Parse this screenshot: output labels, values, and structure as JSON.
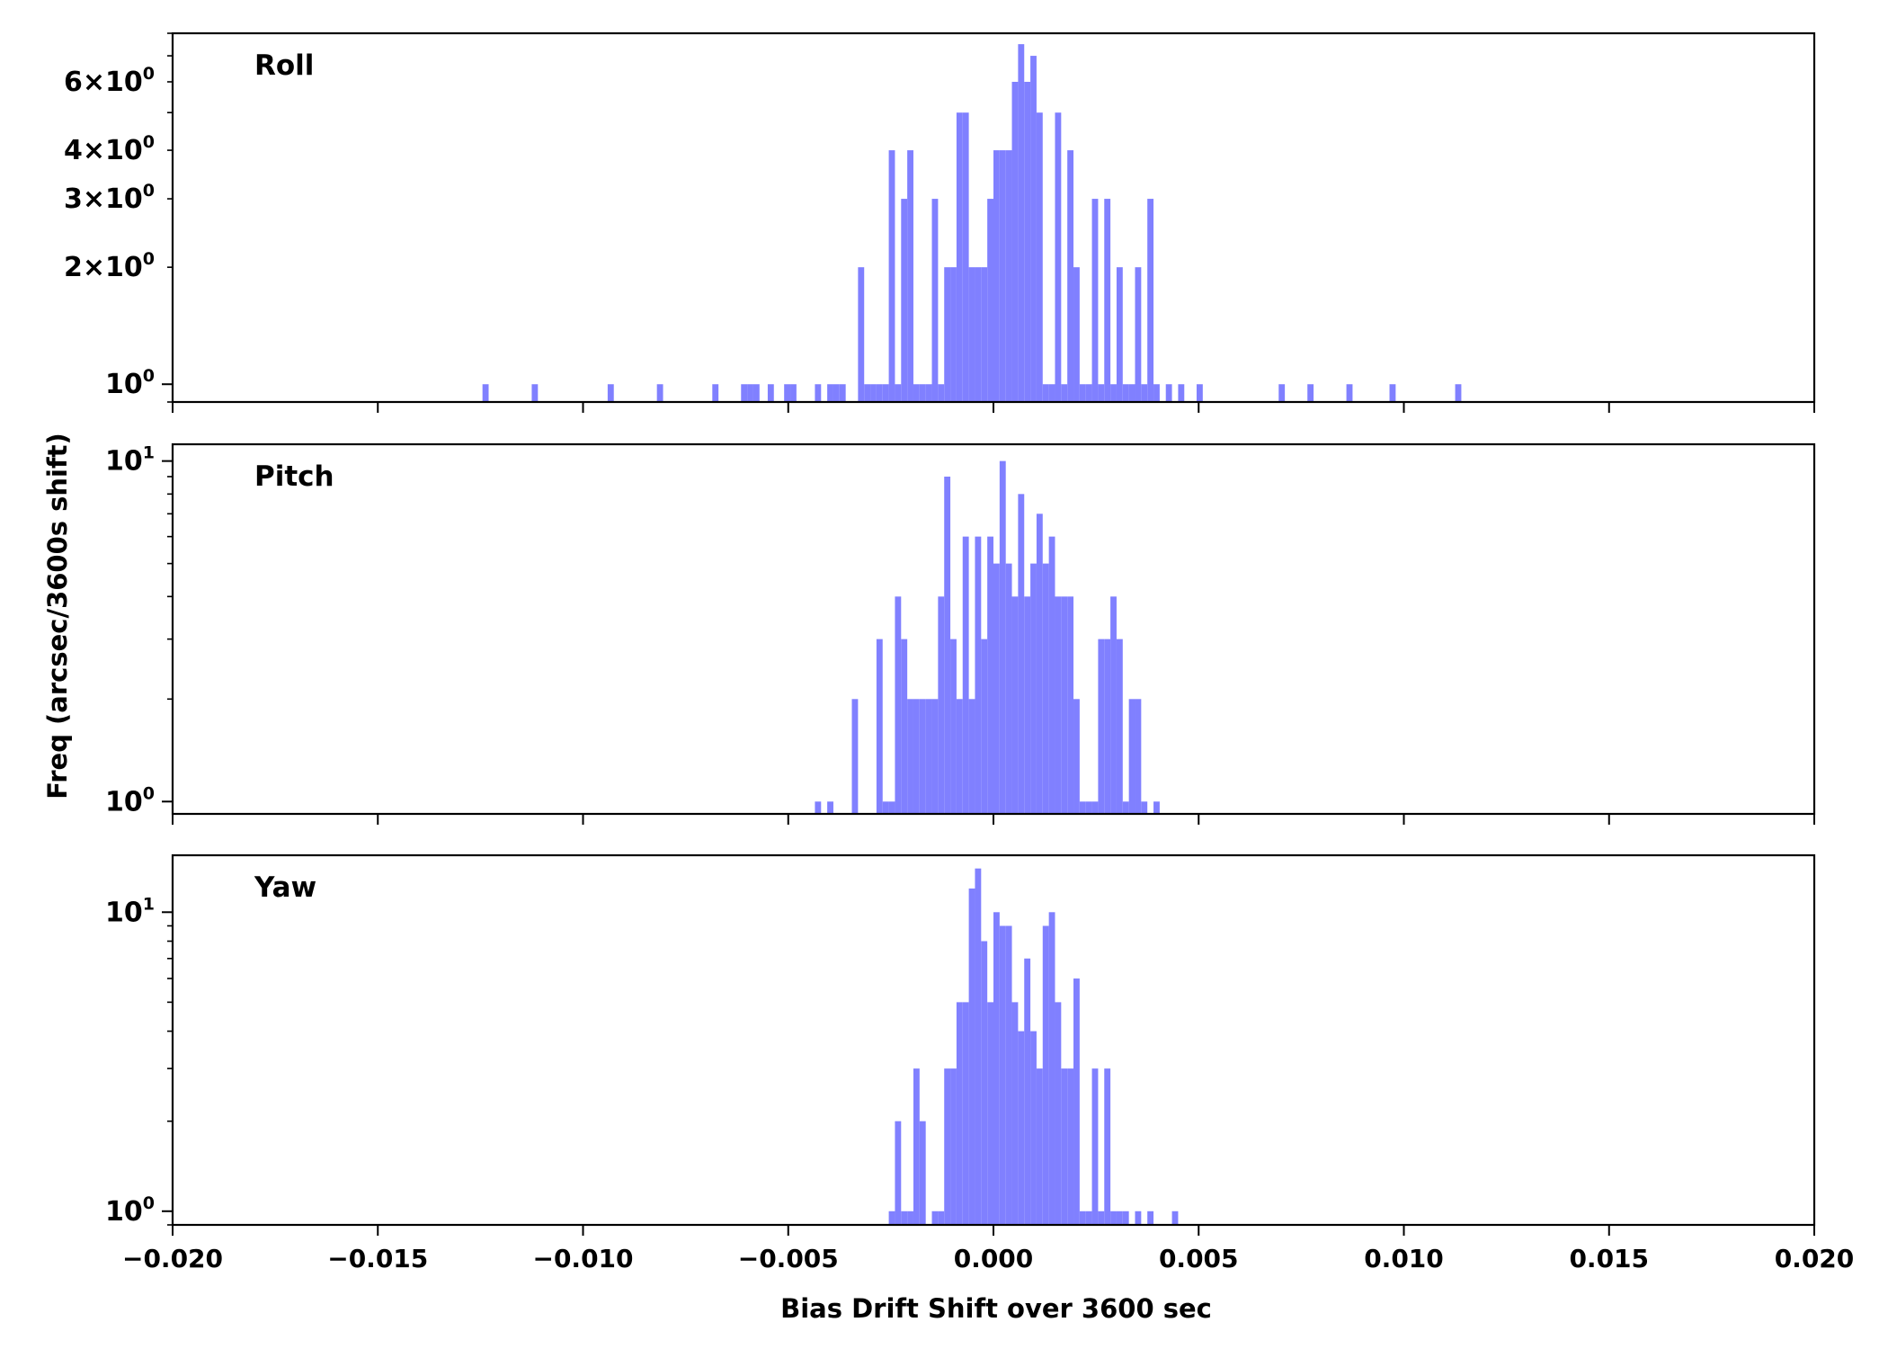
{
  "chart_data": {
    "type": "histogram",
    "xlabel": "Bias Drift Shift over 3600 sec",
    "ylabel": "Freq (arcsec/3600s shift)",
    "xlim": [
      -0.02,
      0.02
    ],
    "bar_color": "#8080ff",
    "x_ticks": [
      "−0.020",
      "−0.015",
      "−0.010",
      "−0.005",
      "0.000",
      "0.005",
      "0.010",
      "0.015",
      "0.020"
    ],
    "x_tick_values": [
      -0.02,
      -0.015,
      -0.01,
      -0.005,
      0.0,
      0.005,
      0.01,
      0.015,
      0.02
    ],
    "panels": [
      {
        "name": "Roll",
        "yscale": "log",
        "ylim": [
          0.9,
          8.0
        ],
        "yticks": [
          {
            "value": 1,
            "mant": "",
            "exp": "0"
          },
          {
            "value": 2,
            "mant": "2",
            "exp": "0"
          },
          {
            "value": 3,
            "mant": "3",
            "exp": "0"
          },
          {
            "value": 4,
            "mant": "4",
            "exp": "0"
          },
          {
            "value": 6,
            "mant": "6",
            "exp": "0"
          }
        ],
        "bins": [
          [
            -0.01245,
            1
          ],
          [
            -0.01125,
            1
          ],
          [
            -0.0094,
            1
          ],
          [
            -0.0082,
            1
          ],
          [
            -0.00685,
            1
          ],
          [
            -0.00615,
            1
          ],
          [
            -0.006,
            1
          ],
          [
            -0.00585,
            1
          ],
          [
            -0.0055,
            1
          ],
          [
            -0.0051,
            1
          ],
          [
            -0.00495,
            1
          ],
          [
            -0.00435,
            1
          ],
          [
            -0.00405,
            1
          ],
          [
            -0.0039,
            1
          ],
          [
            -0.00375,
            1
          ],
          [
            -0.0033,
            2
          ],
          [
            -0.00315,
            1
          ],
          [
            -0.003,
            1
          ],
          [
            -0.00285,
            1
          ],
          [
            -0.0027,
            1
          ],
          [
            -0.00255,
            4
          ],
          [
            -0.0024,
            1
          ],
          [
            -0.00225,
            3
          ],
          [
            -0.0021,
            4
          ],
          [
            -0.00195,
            1
          ],
          [
            -0.0018,
            1
          ],
          [
            -0.00165,
            1
          ],
          [
            -0.0015,
            3
          ],
          [
            -0.00135,
            1
          ],
          [
            -0.0012,
            2
          ],
          [
            -0.00105,
            2
          ],
          [
            -0.0009,
            5
          ],
          [
            -0.00075,
            5
          ],
          [
            -0.0006,
            2
          ],
          [
            -0.00045,
            2
          ],
          [
            -0.0003,
            2
          ],
          [
            -0.00015,
            3
          ],
          [
            0.0,
            4
          ],
          [
            0.00015,
            4
          ],
          [
            0.0003,
            4
          ],
          [
            0.00045,
            6
          ],
          [
            0.0006,
            7.5
          ],
          [
            0.00075,
            6
          ],
          [
            0.0009,
            7
          ],
          [
            0.00105,
            5
          ],
          [
            0.0012,
            1
          ],
          [
            0.00135,
            1
          ],
          [
            0.0015,
            5
          ],
          [
            0.00165,
            1
          ],
          [
            0.0018,
            4
          ],
          [
            0.00195,
            2
          ],
          [
            0.0021,
            1
          ],
          [
            0.00225,
            1
          ],
          [
            0.0024,
            3
          ],
          [
            0.00255,
            1
          ],
          [
            0.0027,
            3
          ],
          [
            0.00285,
            1
          ],
          [
            0.003,
            2
          ],
          [
            0.00315,
            1
          ],
          [
            0.0033,
            1
          ],
          [
            0.00345,
            2
          ],
          [
            0.0036,
            1
          ],
          [
            0.00375,
            3
          ],
          [
            0.0039,
            1
          ],
          [
            0.0042,
            1
          ],
          [
            0.0045,
            1
          ],
          [
            0.00495,
            1
          ],
          [
            0.00695,
            1
          ],
          [
            0.00765,
            1
          ],
          [
            0.0086,
            1
          ],
          [
            0.00965,
            1
          ],
          [
            0.01125,
            1
          ]
        ]
      },
      {
        "name": "Pitch",
        "yscale": "log",
        "ylim": [
          0.92,
          11.2
        ],
        "yticks": [
          {
            "value": 1,
            "mant": "",
            "exp": "0"
          },
          {
            "value": 10,
            "mant": "",
            "exp": "1"
          }
        ],
        "bins": [
          [
            -0.00435,
            1
          ],
          [
            -0.00405,
            1
          ],
          [
            -0.00345,
            2
          ],
          [
            -0.00285,
            3
          ],
          [
            -0.0027,
            1
          ],
          [
            -0.00255,
            1
          ],
          [
            -0.0024,
            4
          ],
          [
            -0.00225,
            3
          ],
          [
            -0.0021,
            2
          ],
          [
            -0.00195,
            2
          ],
          [
            -0.0018,
            2
          ],
          [
            -0.00165,
            2
          ],
          [
            -0.0015,
            2
          ],
          [
            -0.00135,
            4
          ],
          [
            -0.0012,
            9
          ],
          [
            -0.00105,
            3
          ],
          [
            -0.0009,
            2
          ],
          [
            -0.00075,
            6
          ],
          [
            -0.0006,
            2
          ],
          [
            -0.00045,
            6
          ],
          [
            -0.0003,
            3
          ],
          [
            -0.00015,
            6
          ],
          [
            0.0,
            5
          ],
          [
            0.00015,
            10
          ],
          [
            0.0003,
            5
          ],
          [
            0.00045,
            4
          ],
          [
            0.0006,
            8
          ],
          [
            0.00075,
            4
          ],
          [
            0.0009,
            5
          ],
          [
            0.00105,
            7
          ],
          [
            0.0012,
            5
          ],
          [
            0.00135,
            6
          ],
          [
            0.0015,
            4
          ],
          [
            0.00165,
            4
          ],
          [
            0.0018,
            4
          ],
          [
            0.00195,
            2
          ],
          [
            0.0021,
            1
          ],
          [
            0.00225,
            1
          ],
          [
            0.0024,
            1
          ],
          [
            0.00255,
            3
          ],
          [
            0.0027,
            3
          ],
          [
            0.00285,
            4
          ],
          [
            0.003,
            3
          ],
          [
            0.00315,
            1
          ],
          [
            0.0033,
            2
          ],
          [
            0.00345,
            2
          ],
          [
            0.0036,
            1
          ],
          [
            0.0039,
            1
          ]
        ]
      },
      {
        "name": "Yaw",
        "yscale": "log",
        "ylim": [
          0.9,
          15.5
        ],
        "yticks": [
          {
            "value": 1,
            "mant": "",
            "exp": "0"
          },
          {
            "value": 10,
            "mant": "",
            "exp": "1"
          }
        ],
        "bins": [
          [
            -0.00255,
            1
          ],
          [
            -0.0024,
            2
          ],
          [
            -0.00225,
            1
          ],
          [
            -0.0021,
            1
          ],
          [
            -0.00195,
            3
          ],
          [
            -0.0018,
            2
          ],
          [
            -0.0015,
            1
          ],
          [
            -0.00135,
            1
          ],
          [
            -0.0012,
            3
          ],
          [
            -0.00105,
            3
          ],
          [
            -0.0009,
            5
          ],
          [
            -0.00075,
            5
          ],
          [
            -0.0006,
            12
          ],
          [
            -0.00045,
            14
          ],
          [
            -0.0003,
            8
          ],
          [
            -0.00015,
            5
          ],
          [
            0.0,
            10
          ],
          [
            0.00015,
            9
          ],
          [
            0.0003,
            9
          ],
          [
            0.00045,
            5
          ],
          [
            0.0006,
            4
          ],
          [
            0.00075,
            7
          ],
          [
            0.0009,
            4
          ],
          [
            0.00105,
            3
          ],
          [
            0.0012,
            9
          ],
          [
            0.00135,
            10
          ],
          [
            0.0015,
            5
          ],
          [
            0.00165,
            3
          ],
          [
            0.0018,
            3
          ],
          [
            0.00195,
            6
          ],
          [
            0.0021,
            1
          ],
          [
            0.00225,
            1
          ],
          [
            0.0024,
            3
          ],
          [
            0.00255,
            1
          ],
          [
            0.0027,
            3
          ],
          [
            0.00285,
            1
          ],
          [
            0.003,
            1
          ],
          [
            0.00315,
            1
          ],
          [
            0.00345,
            1
          ],
          [
            0.00375,
            1
          ],
          [
            0.00435,
            1
          ]
        ]
      }
    ]
  }
}
